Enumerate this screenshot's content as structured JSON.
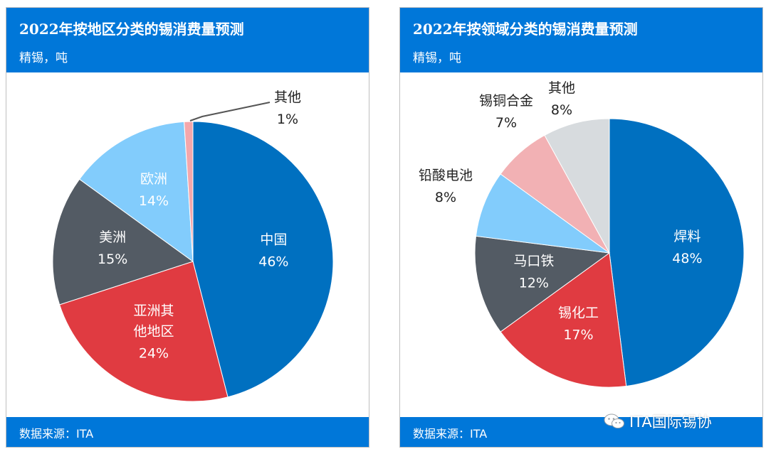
{
  "panels": [
    {
      "title": "2022年按地区分类的锡消费量预测",
      "unit_note": "精锡，吨",
      "source": "数据来源：ITA"
    },
    {
      "title": "2022年按领域分类的锡消费量预测",
      "unit_note": "精锡，吨",
      "source": "数据来源：ITA"
    }
  ],
  "watermark": {
    "text": "ITA国际锡协",
    "icon": "wechat-icon"
  },
  "chart_data": [
    {
      "type": "pie",
      "title": "2022年按地区分类的锡消费量预测",
      "subtitle": "精锡，吨",
      "start_angle_deg": 0,
      "direction": "clockwise",
      "slices": [
        {
          "label_lines": [
            "中国"
          ],
          "value": 46,
          "pct": "46%",
          "color": "#0070c0",
          "label_color": "#ffffff"
        },
        {
          "label_lines": [
            "亚洲其",
            "他地区"
          ],
          "value": 24,
          "pct": "24%",
          "color": "#e03b41",
          "label_color": "#ffffff"
        },
        {
          "label_lines": [
            "美洲"
          ],
          "value": 15,
          "pct": "15%",
          "color": "#535b64",
          "label_color": "#ffffff"
        },
        {
          "label_lines": [
            "欧洲"
          ],
          "value": 14,
          "pct": "14%",
          "color": "#82ccfc",
          "label_color": "#ffffff"
        },
        {
          "label_lines": [
            "其他"
          ],
          "value": 1,
          "pct": "1%",
          "color": "#f4a7ab",
          "label_color": "#222222",
          "outside": true
        }
      ]
    },
    {
      "type": "pie",
      "title": "2022年按领域分类的锡消费量预测",
      "subtitle": "精锡，吨",
      "start_angle_deg": 0,
      "direction": "clockwise",
      "slices": [
        {
          "label_lines": [
            "焊料"
          ],
          "value": 48,
          "pct": "48%",
          "color": "#0070c0",
          "label_color": "#ffffff"
        },
        {
          "label_lines": [
            "锡化工"
          ],
          "value": 17,
          "pct": "17%",
          "color": "#e03b41",
          "label_color": "#ffffff"
        },
        {
          "label_lines": [
            "马口铁"
          ],
          "value": 12,
          "pct": "12%",
          "color": "#535b64",
          "label_color": "#ffffff"
        },
        {
          "label_lines": [
            "铅酸电池"
          ],
          "value": 8,
          "pct": "8%",
          "color": "#82ccfc",
          "label_color": "#222222",
          "outside": true
        },
        {
          "label_lines": [
            "锡铜合金"
          ],
          "value": 7,
          "pct": "7%",
          "color": "#f2b1b4",
          "label_color": "#222222",
          "outside": true
        },
        {
          "label_lines": [
            "其他"
          ],
          "value": 8,
          "pct": "8%",
          "color": "#d7dbde",
          "label_color": "#222222",
          "outside": true
        }
      ]
    }
  ]
}
